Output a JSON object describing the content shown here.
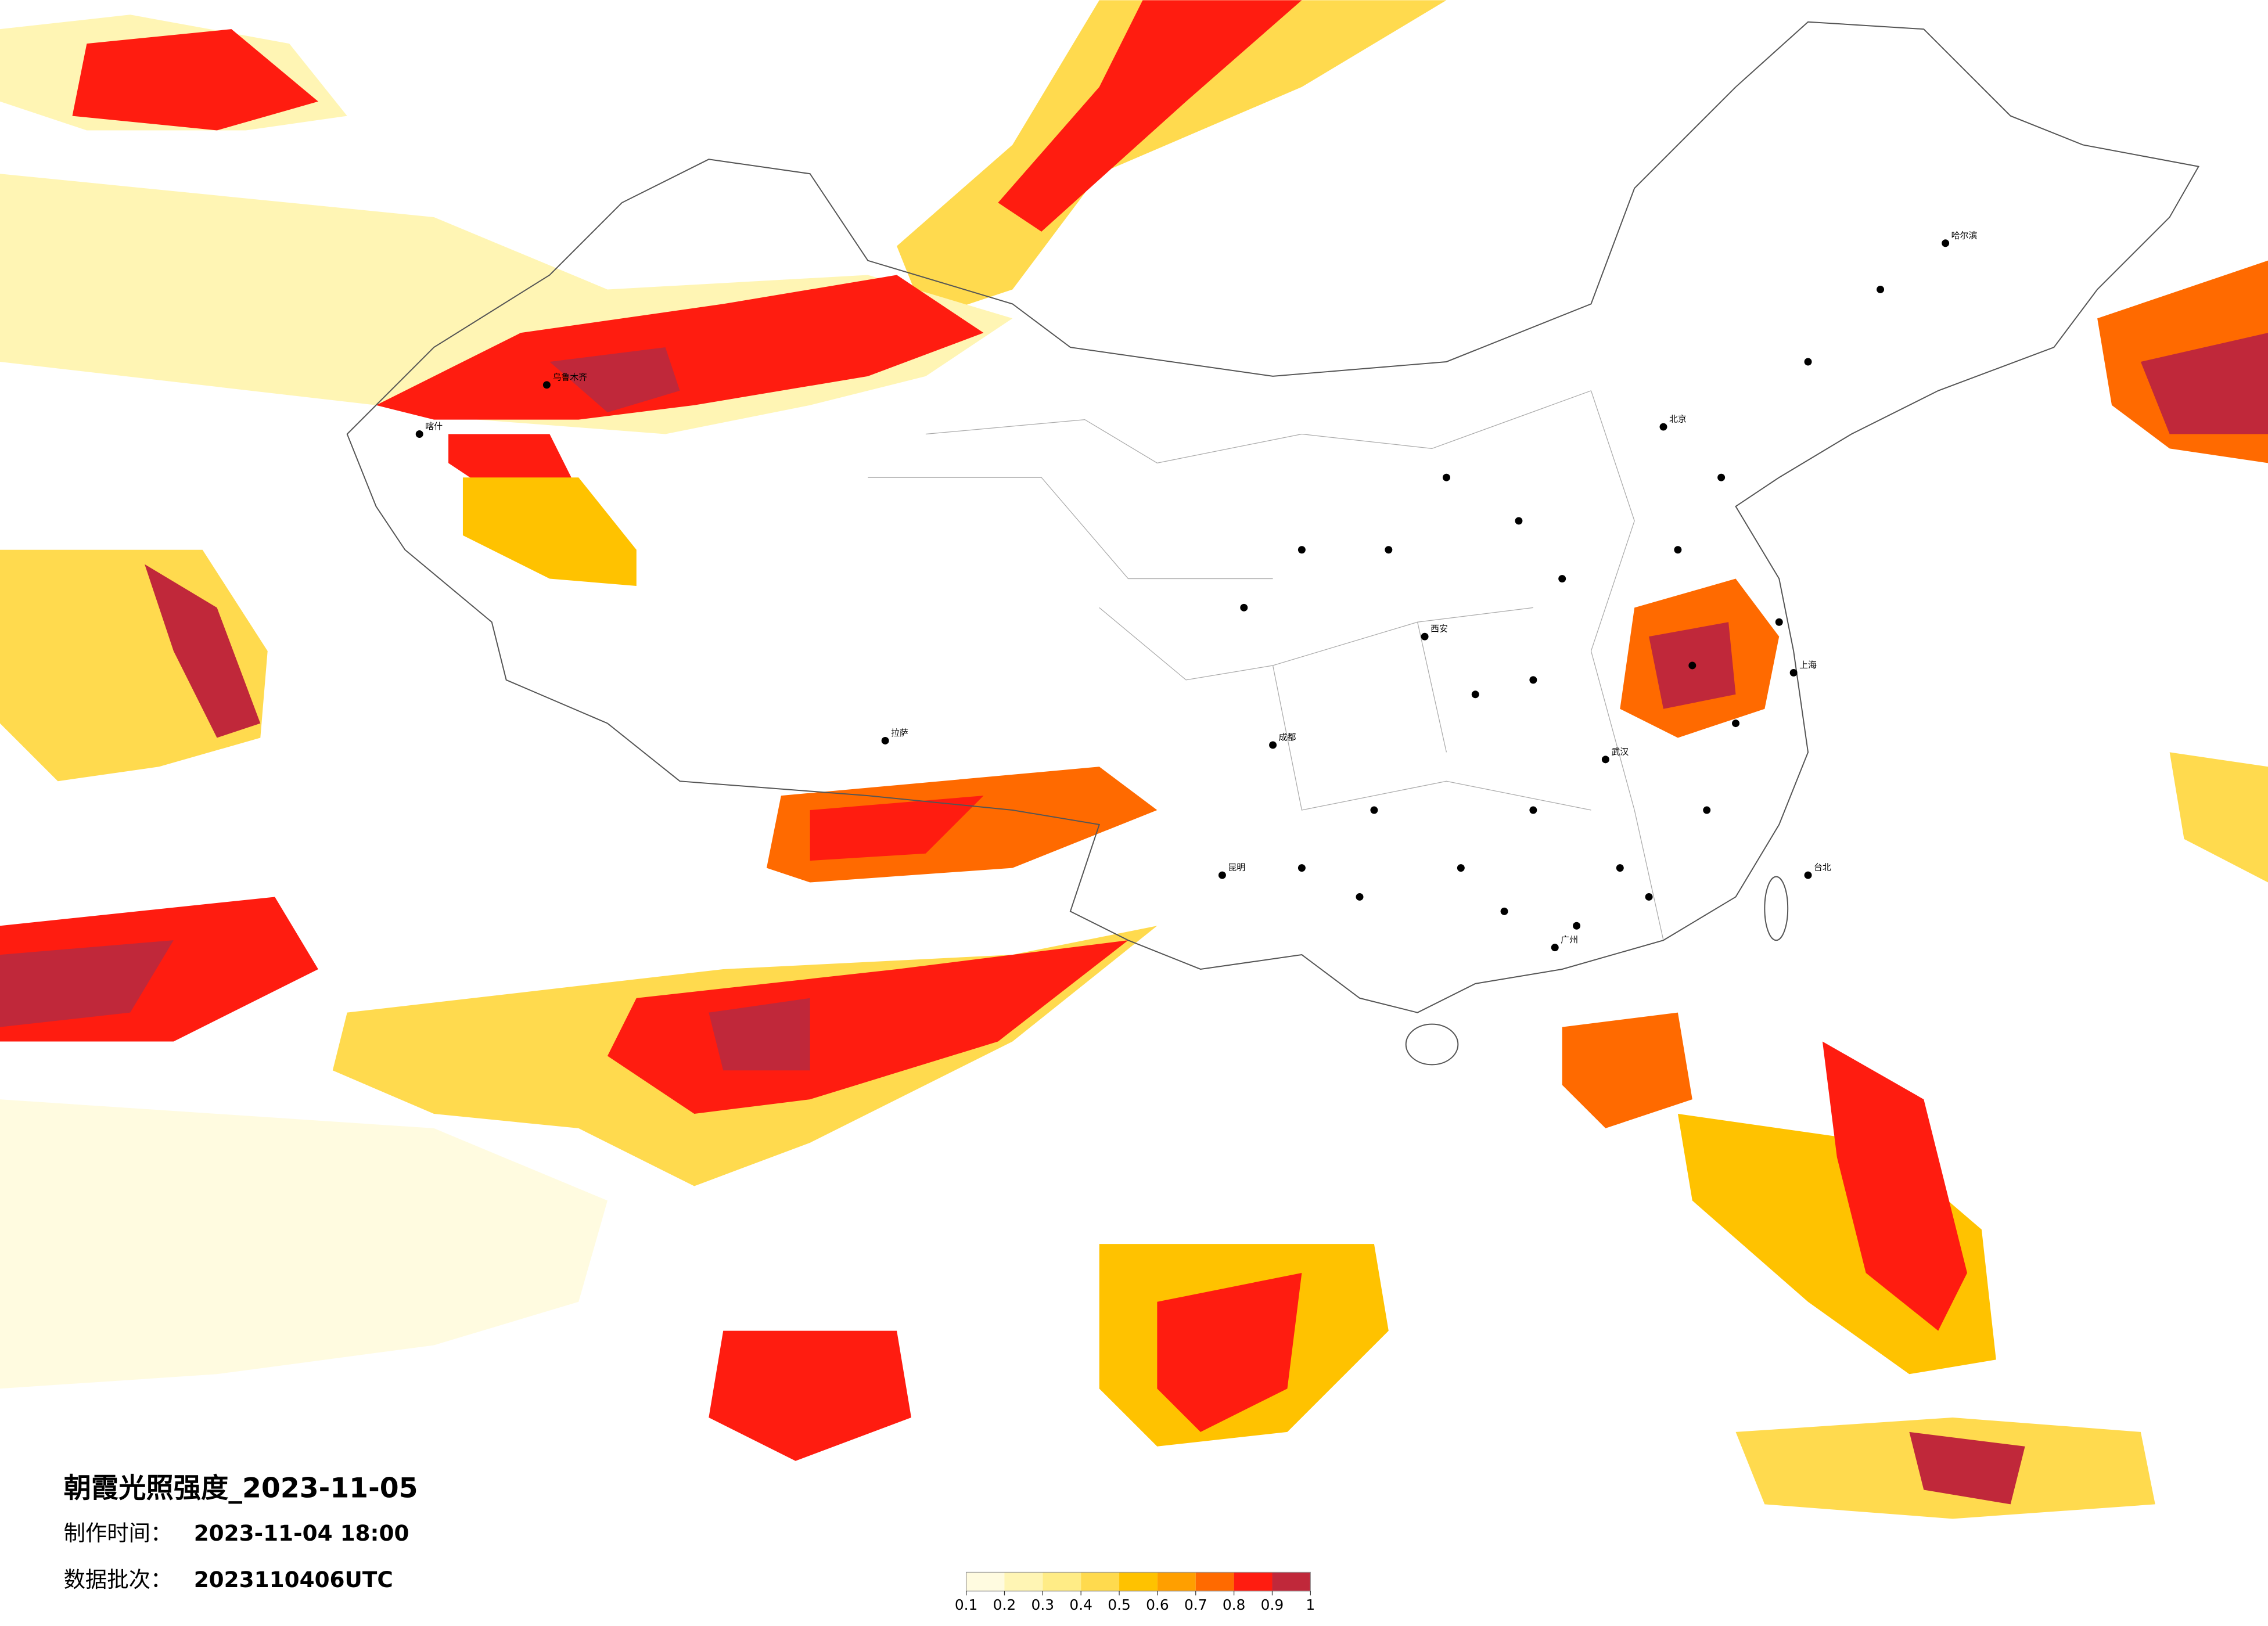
{
  "title": "朝霞光照强度_2023-11-05",
  "info": [
    {
      "label": "制作时间：",
      "value": "2023-11-04 18:00"
    },
    {
      "label": "数据批次：",
      "value": "2023110406UTC"
    }
  ],
  "legend": {
    "ticks": [
      0.1,
      0.2,
      0.3,
      0.4,
      0.5,
      0.6,
      0.7,
      0.8,
      0.9,
      1
    ],
    "colors": [
      "#fffbe0",
      "#fff5b4",
      "#ffec86",
      "#ffda4e",
      "#ffc200",
      "#ff9f00",
      "#ff6a00",
      "#ff1c10",
      "#c0283a"
    ]
  },
  "cities": [
    "北京",
    "上海",
    "广州",
    "成都",
    "武汉",
    "西安",
    "乌鲁木齐",
    "哈尔滨",
    "拉萨",
    "昆明",
    "台北",
    "喀什"
  ]
}
